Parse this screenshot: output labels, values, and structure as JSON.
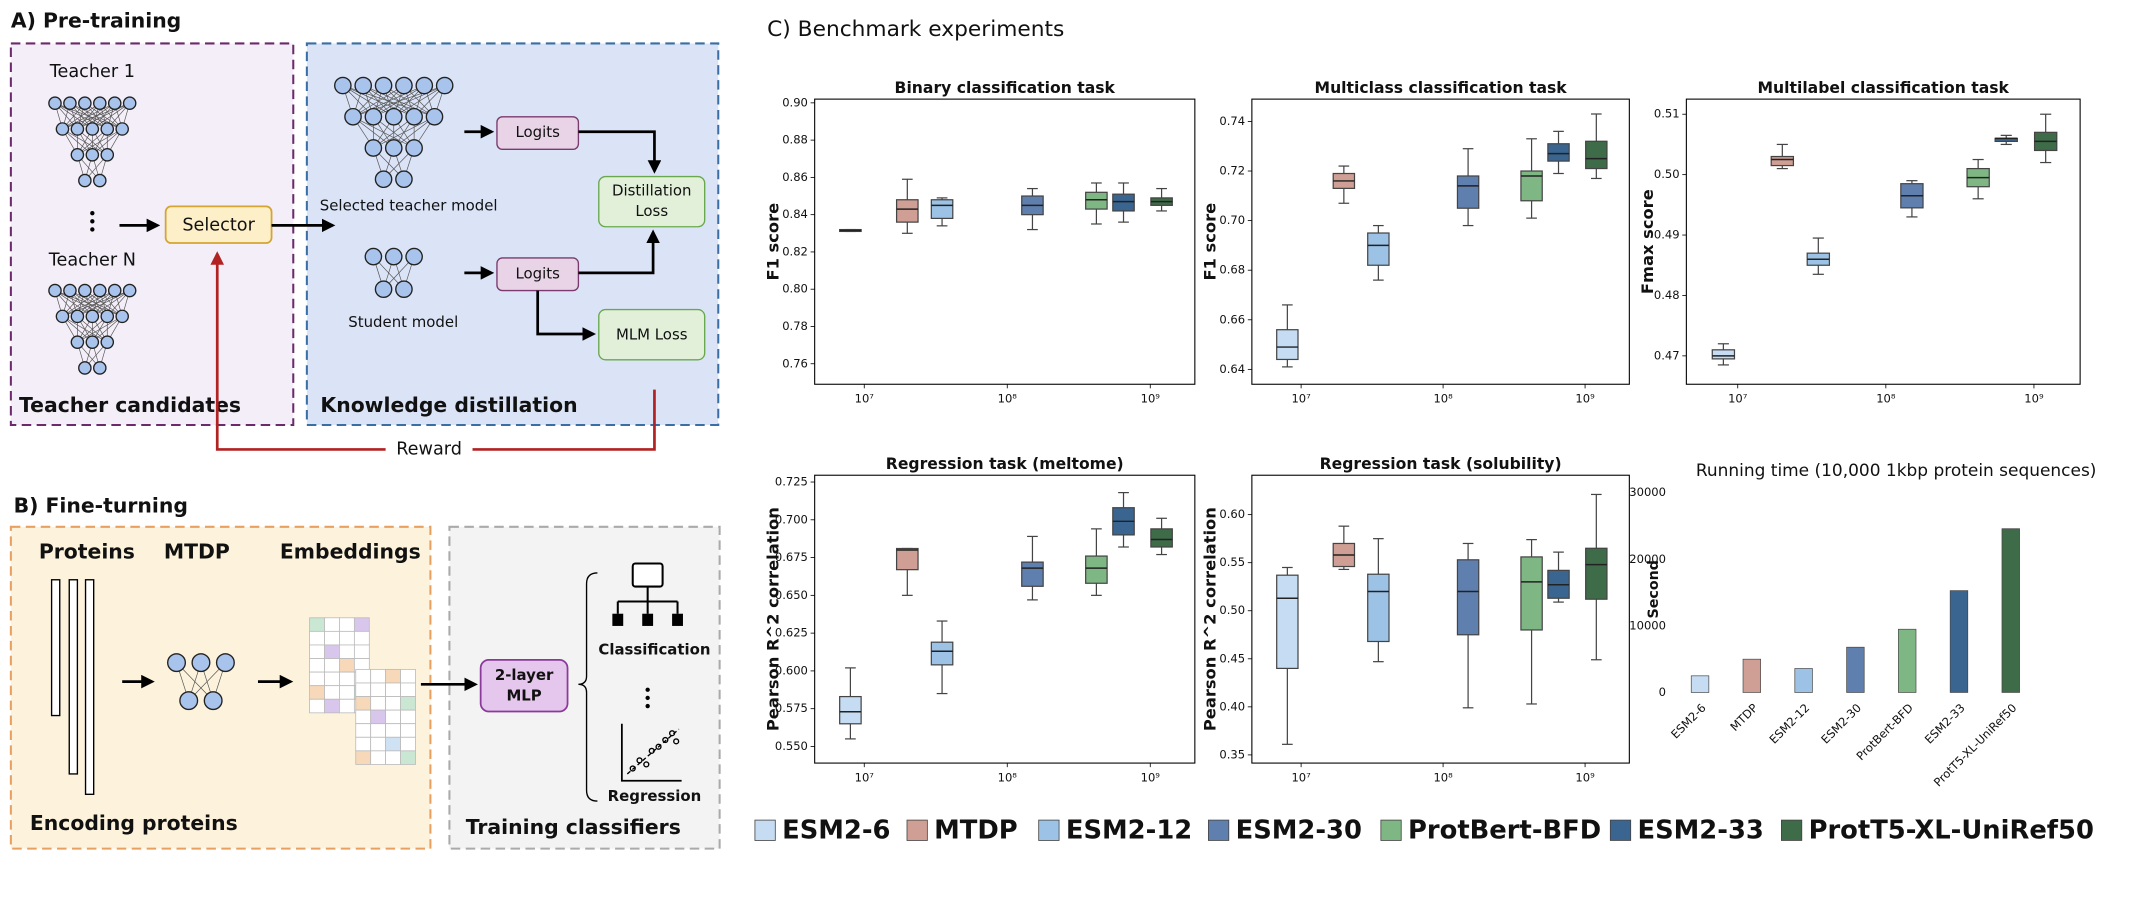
{
  "panel_a": {
    "title": "A) Pre-training",
    "teacher_1": "Teacher 1",
    "teacher_n": "Teacher N",
    "teacher_candidates": "Teacher candidates",
    "selector": "Selector",
    "selected_teacher": "Selected teacher model",
    "student": "Student model",
    "logits": [
      "Logits",
      "Logits"
    ],
    "distillation_loss": [
      "Distillation",
      "Loss"
    ],
    "mlm_loss": "MLM Loss",
    "knowledge_distillation": "Knowledge distillation",
    "reward": "Reward"
  },
  "panel_b": {
    "title": "B) Fine-turning",
    "proteins": "Proteins",
    "mtdp": "MTDP",
    "embeddings": "Embeddings",
    "encoding_proteins": "Encoding proteins",
    "mlp": [
      "2-layer",
      "MLP"
    ],
    "classification": "Classification",
    "regression": "Regression",
    "training_classifiers": "Training classifiers"
  },
  "panel_c": {
    "title": "C) Benchmark experiments"
  },
  "chart_data": [
    {
      "type": "box",
      "title": "Binary classification task",
      "y_label": "F1 score",
      "x_scale": "log",
      "xlim": [
        4500000,
        2050000000
      ],
      "xticks": [
        {
          "value": 10000000,
          "label": "10⁷"
        },
        {
          "value": 100000000,
          "label": "10⁸"
        },
        {
          "value": 1000000000,
          "label": "10⁹"
        }
      ],
      "ylim": [
        0.749,
        0.902
      ],
      "yticks": [
        0.76,
        0.78,
        {
          "value": 0.8,
          "label": "0.80"
        },
        0.82,
        0.84,
        0.86,
        0.88,
        {
          "value": 0.9,
          "label": "0.90"
        }
      ],
      "series": [
        {
          "name": "ESM2-6",
          "color": "#c6dcf2",
          "x": 8000000,
          "values": [
            0.831,
            0.831,
            0.8315,
            0.832,
            0.832
          ]
        },
        {
          "name": "MTDP",
          "color": "#cf9e94",
          "x": 20000000,
          "values": [
            0.83,
            0.836,
            0.843,
            0.848,
            0.859
          ]
        },
        {
          "name": "ESM2-12",
          "color": "#9cc3e6",
          "x": 35000000,
          "values": [
            0.834,
            0.838,
            0.845,
            0.848,
            0.849
          ]
        },
        {
          "name": "ESM2-30",
          "color": "#5f7fae",
          "x": 150000000,
          "values": [
            0.832,
            0.84,
            0.845,
            0.85,
            0.854
          ]
        },
        {
          "name": "ProtBert-BFD",
          "color": "#7fb784",
          "x": 420000000,
          "values": [
            0.835,
            0.843,
            0.848,
            0.852,
            0.857
          ]
        },
        {
          "name": "ESM2-33",
          "color": "#3a6591",
          "x": 650000000,
          "values": [
            0.836,
            0.842,
            0.847,
            0.851,
            0.857
          ]
        },
        {
          "name": "ProtT5-XL-UniRef50",
          "color": "#3e6b48",
          "x": 1200000000,
          "values": [
            0.842,
            0.845,
            0.847,
            0.849,
            0.854
          ]
        }
      ]
    },
    {
      "type": "box",
      "title": "Multiclass classification task",
      "y_label": "F1 score",
      "x_scale": "log",
      "xlim": [
        4500000,
        2050000000
      ],
      "xticks": [
        {
          "value": 10000000,
          "label": "10⁷"
        },
        {
          "value": 100000000,
          "label": "10⁸"
        },
        {
          "value": 1000000000,
          "label": "10⁹"
        }
      ],
      "ylim": [
        0.634,
        0.749
      ],
      "yticks": [
        0.64,
        0.66,
        0.68,
        {
          "value": 0.7,
          "label": "0.70"
        },
        0.72,
        0.74
      ],
      "series": [
        {
          "color": "#c6dcf2",
          "x": 8000000,
          "values": [
            0.641,
            0.644,
            0.649,
            0.656,
            0.666
          ]
        },
        {
          "color": "#cf9e94",
          "x": 20000000,
          "values": [
            0.707,
            0.713,
            0.716,
            0.719,
            0.722
          ]
        },
        {
          "color": "#9cc3e6",
          "x": 35000000,
          "values": [
            0.676,
            0.682,
            0.69,
            0.695,
            0.698
          ]
        },
        {
          "color": "#5f7fae",
          "x": 150000000,
          "values": [
            0.698,
            0.705,
            0.714,
            0.718,
            0.729
          ]
        },
        {
          "color": "#7fb784",
          "x": 420000000,
          "values": [
            0.701,
            0.708,
            0.718,
            0.72,
            0.733
          ]
        },
        {
          "color": "#3a6591",
          "x": 650000000,
          "values": [
            0.719,
            0.724,
            0.727,
            0.731,
            0.736
          ]
        },
        {
          "color": "#3e6b48",
          "x": 1200000000,
          "values": [
            0.717,
            0.721,
            0.725,
            0.732,
            0.743
          ]
        }
      ]
    },
    {
      "type": "box",
      "title": "Multilabel classification task",
      "y_label": "Fmax score",
      "x_scale": "log",
      "xlim": [
        4500000,
        2050000000
      ],
      "xticks": [
        {
          "value": 10000000,
          "label": "10⁷"
        },
        {
          "value": 100000000,
          "label": "10⁸"
        },
        {
          "value": 1000000000,
          "label": "10⁹"
        }
      ],
      "ylim": [
        0.4653,
        0.5125
      ],
      "yticks": [
        0.47,
        0.48,
        0.49,
        {
          "value": 0.5,
          "label": "0.50"
        },
        0.51
      ],
      "series": [
        {
          "color": "#c6dcf2",
          "x": 8000000,
          "values": [
            0.4685,
            0.4695,
            0.47,
            0.471,
            0.472
          ]
        },
        {
          "color": "#cf9e94",
          "x": 20000000,
          "values": [
            0.501,
            0.5015,
            0.5025,
            0.503,
            0.505
          ]
        },
        {
          "color": "#9cc3e6",
          "x": 35000000,
          "values": [
            0.4835,
            0.485,
            0.486,
            0.487,
            0.4895
          ]
        },
        {
          "color": "#5f7fae",
          "x": 150000000,
          "values": [
            0.493,
            0.4945,
            0.4965,
            0.4985,
            0.499
          ]
        },
        {
          "color": "#7fb784",
          "x": 420000000,
          "values": [
            0.496,
            0.498,
            0.4995,
            0.501,
            0.5025
          ]
        },
        {
          "color": "#3a6591",
          "x": 650000000,
          "values": [
            0.505,
            0.5055,
            0.506,
            0.506,
            0.5065
          ]
        },
        {
          "color": "#3e6b48",
          "x": 1200000000,
          "values": [
            0.502,
            0.504,
            0.5055,
            0.507,
            0.51
          ]
        }
      ]
    },
    {
      "type": "box",
      "title": "Regression task (meltome)",
      "y_label": "Pearson R^2 correlation",
      "x_scale": "log",
      "xlim": [
        4500000,
        2050000000
      ],
      "xticks": [
        {
          "value": 10000000,
          "label": "10⁷"
        },
        {
          "value": 100000000,
          "label": "10⁸"
        },
        {
          "value": 1000000000,
          "label": "10⁹"
        }
      ],
      "ylim": [
        0.539,
        0.7295
      ],
      "yticks": [
        {
          "value": 0.55,
          "label": "0.550"
        },
        0.575,
        {
          "value": 0.6,
          "label": "0.600"
        },
        0.625,
        {
          "value": 0.65,
          "label": "0.650"
        },
        0.675,
        {
          "value": 0.7,
          "label": "0.700"
        },
        0.725
      ],
      "series": [
        {
          "color": "#c6dcf2",
          "x": 8000000,
          "values": [
            0.555,
            0.565,
            0.573,
            0.583,
            0.602
          ]
        },
        {
          "color": "#cf9e94",
          "x": 20000000,
          "values": [
            0.65,
            0.667,
            0.68,
            0.681,
            0.681
          ]
        },
        {
          "color": "#9cc3e6",
          "x": 35000000,
          "values": [
            0.585,
            0.604,
            0.613,
            0.619,
            0.633
          ]
        },
        {
          "color": "#5f7fae",
          "x": 150000000,
          "values": [
            0.647,
            0.656,
            0.668,
            0.672,
            0.689
          ]
        },
        {
          "color": "#7fb784",
          "x": 420000000,
          "values": [
            0.65,
            0.658,
            0.668,
            0.676,
            0.694
          ]
        },
        {
          "color": "#3a6591",
          "x": 650000000,
          "values": [
            0.682,
            0.69,
            0.699,
            0.708,
            0.718
          ]
        },
        {
          "color": "#3e6b48",
          "x": 1200000000,
          "values": [
            0.677,
            0.682,
            0.687,
            0.694,
            0.701
          ]
        }
      ]
    },
    {
      "type": "box",
      "title": "Regression task (solubility)",
      "y_label": "Pearson R^2 correlation",
      "x_scale": "log",
      "xlim": [
        4500000,
        2050000000
      ],
      "xticks": [
        {
          "value": 10000000,
          "label": "10⁷"
        },
        {
          "value": 100000000,
          "label": "10⁸"
        },
        {
          "value": 1000000000,
          "label": "10⁹"
        }
      ],
      "ylim": [
        0.3415,
        0.641
      ],
      "yticks": [
        0.35,
        {
          "value": 0.4,
          "label": "0.40"
        },
        0.45,
        {
          "value": 0.5,
          "label": "0.50"
        },
        0.55,
        {
          "value": 0.6,
          "label": "0.60"
        }
      ],
      "series": [
        {
          "color": "#c6dcf2",
          "x": 8000000,
          "values": [
            0.361,
            0.44,
            0.513,
            0.537,
            0.545
          ]
        },
        {
          "color": "#cf9e94",
          "x": 20000000,
          "values": [
            0.543,
            0.546,
            0.558,
            0.57,
            0.588
          ]
        },
        {
          "color": "#9cc3e6",
          "x": 35000000,
          "values": [
            0.447,
            0.468,
            0.52,
            0.538,
            0.575
          ]
        },
        {
          "color": "#5f7fae",
          "x": 150000000,
          "values": [
            0.399,
            0.475,
            0.52,
            0.553,
            0.57
          ]
        },
        {
          "color": "#7fb784",
          "x": 420000000,
          "values": [
            0.403,
            0.48,
            0.53,
            0.556,
            0.574
          ]
        },
        {
          "color": "#3a6591",
          "x": 650000000,
          "values": [
            0.509,
            0.513,
            0.527,
            0.542,
            0.561
          ]
        },
        {
          "color": "#3e6b48",
          "x": 1200000000,
          "values": [
            0.449,
            0.512,
            0.548,
            0.565,
            0.621
          ]
        }
      ]
    },
    {
      "type": "bar",
      "title": "Running time (10,000 1kbp protein sequences)",
      "y_label": "Second",
      "categories": [
        "ESM2-6",
        "MTDP",
        "ESM2-12",
        "ESM2-30",
        "ProtBert-BFD",
        "ESM2-33",
        "ProtT5-XL-UniRef50"
      ],
      "values": [
        2500,
        5000,
        3600,
        6800,
        9500,
        15300,
        24600
      ],
      "colors": [
        "#c6dcf2",
        "#cf9e94",
        "#9cc3e6",
        "#5f7fae",
        "#7fb784",
        "#3a6591",
        "#3e6b48"
      ],
      "ylim": [
        0,
        31000
      ],
      "yticks": [
        0,
        10000,
        20000,
        30000
      ]
    }
  ]
}
